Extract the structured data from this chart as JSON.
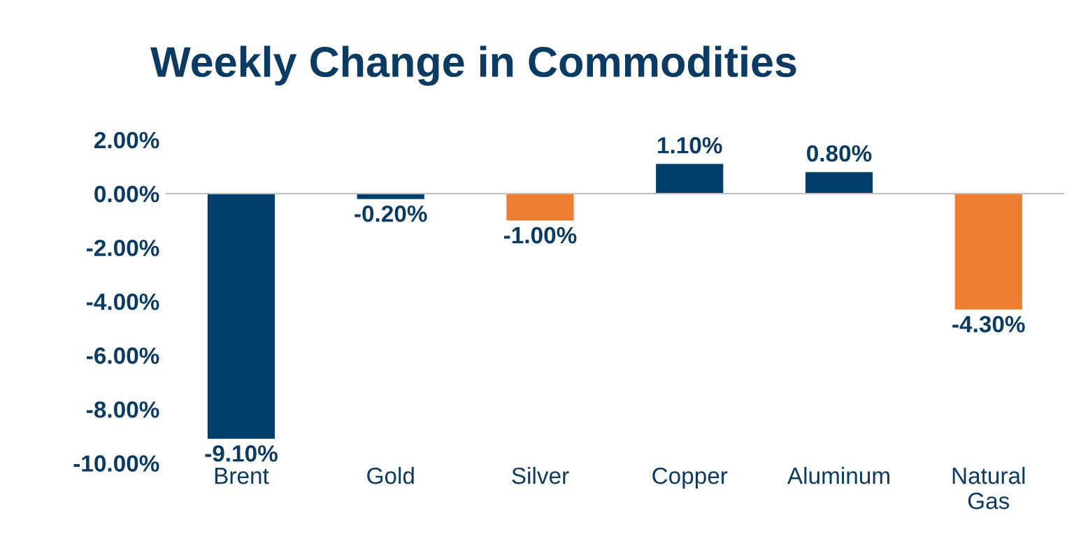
{
  "chart_data": {
    "type": "bar",
    "title": "Weekly Change in Commodities",
    "categories": [
      "Brent",
      "Gold",
      "Silver",
      "Copper",
      "Aluminum",
      "Natural\nGas"
    ],
    "values": [
      -9.1,
      -0.2,
      -1.0,
      1.1,
      0.8,
      -4.3
    ],
    "colors": [
      "#003f6b",
      "#003f6b",
      "#ed7d31",
      "#003f6b",
      "#003f6b",
      "#ed7d31"
    ],
    "value_labels": [
      "-9.10%",
      "-0.20%",
      "-1.00%",
      "1.10%",
      "0.80%",
      "-4.30%"
    ],
    "ylim": [
      -10,
      2
    ],
    "yticks": [
      {
        "value": -10,
        "label": "-10.00%"
      },
      {
        "value": -8,
        "label": "-8.00%"
      },
      {
        "value": -6,
        "label": "-6.00%"
      },
      {
        "value": -4,
        "label": "-4.00%"
      },
      {
        "value": -2,
        "label": "-2.00%"
      },
      {
        "value": 0,
        "label": "0.00%"
      },
      {
        "value": 2,
        "label": "2.00%"
      }
    ],
    "legend": false
  }
}
